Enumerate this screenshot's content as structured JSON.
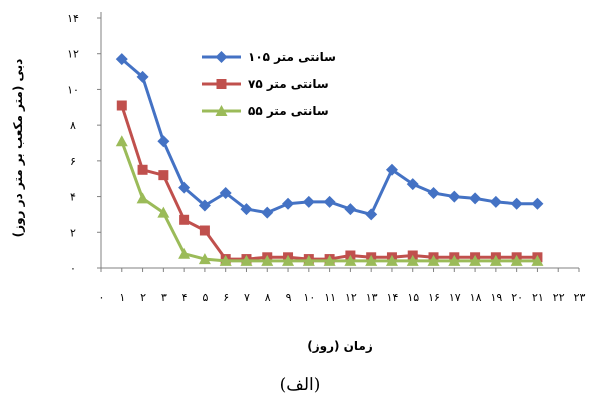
{
  "chart_data": {
    "type": "line",
    "title": "",
    "xlabel": "زمان (روز)",
    "ylabel": "دبی (متر مکعب بر متر در روز)",
    "caption": "(الف)",
    "xlim": [
      0,
      23
    ],
    "ylim": [
      0,
      14
    ],
    "yticks": [
      0,
      2,
      4,
      6,
      8,
      10,
      12,
      14
    ],
    "ytick_labels": [
      "۰",
      "۲",
      "۴",
      "۶",
      "۸",
      "۱۰",
      "۱۲",
      "۱۴"
    ],
    "xticks": [
      0,
      1,
      2,
      3,
      4,
      5,
      6,
      7,
      8,
      9,
      10,
      11,
      12,
      13,
      14,
      15,
      16,
      17,
      18,
      19,
      20,
      21,
      22,
      23
    ],
    "xtick_labels": [
      "۰",
      "۱",
      "۲",
      "۳",
      "۴",
      "۵",
      "۶",
      "۷",
      "۸",
      "۹",
      "۱۰",
      "۱۱",
      "۱۲",
      "۱۳",
      "۱۴",
      "۱۵",
      "۱۶",
      "۱۷",
      "۱۸",
      "۱۹",
      "۲۰",
      "۲۱",
      "۲۲",
      "۲۳"
    ],
    "grid": false,
    "legend_position": "top-center",
    "x": [
      1,
      2,
      3,
      4,
      5,
      6,
      7,
      8,
      9,
      10,
      11,
      12,
      13,
      14,
      15,
      16,
      17,
      18,
      19,
      20,
      21
    ],
    "series": [
      {
        "name": "۱۰۵ سانتی متر",
        "color": "#4472C4",
        "marker": "diamond",
        "values": [
          11.7,
          10.7,
          7.1,
          4.5,
          3.5,
          4.2,
          3.3,
          3.1,
          3.6,
          3.7,
          3.7,
          3.3,
          3.0,
          5.5,
          4.7,
          4.2,
          4.0,
          3.9,
          3.7,
          3.6,
          3.6
        ]
      },
      {
        "name": "۷۵ سانتی متر",
        "color": "#C0504D",
        "marker": "square",
        "values": [
          9.1,
          5.5,
          5.2,
          2.7,
          2.1,
          0.5,
          0.5,
          0.6,
          0.6,
          0.5,
          0.5,
          0.7,
          0.6,
          0.6,
          0.7,
          0.6,
          0.6,
          0.6,
          0.6,
          0.6,
          0.6
        ]
      },
      {
        "name": "۵۵ سانتی متر",
        "color": "#9BBB59",
        "marker": "triangle",
        "values": [
          7.1,
          3.9,
          3.1,
          0.8,
          0.5,
          0.4,
          0.4,
          0.4,
          0.4,
          0.4,
          0.4,
          0.4,
          0.4,
          0.4,
          0.4,
          0.4,
          0.4,
          0.4,
          0.4,
          0.4,
          0.4
        ]
      }
    ]
  }
}
